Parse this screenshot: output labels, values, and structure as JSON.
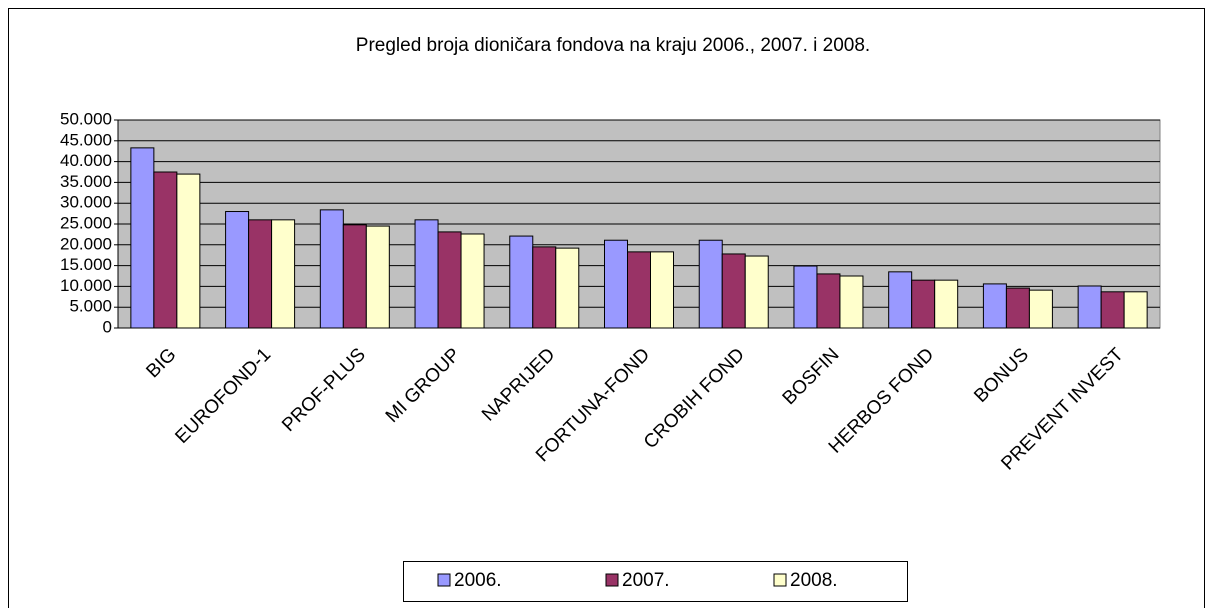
{
  "chart_data": {
    "type": "bar",
    "title": "Pregled broja dioničara fondova na kraju 2006., 2007. i 2008.",
    "categories": [
      "BIG",
      "EUROFOND-1",
      "PROF-PLUS",
      "MI GROUP",
      "NAPRIJED",
      "FORTUNA-FOND",
      "CROBIH FOND",
      "BOSFIN",
      "HERBOS FOND",
      "BONUS",
      "PREVENT INVEST"
    ],
    "series": [
      {
        "name": "2006.",
        "color": "#9999ff",
        "values": [
          43300,
          28000,
          28400,
          26000,
          22100,
          21100,
          21100,
          14900,
          13500,
          10600,
          10100
        ]
      },
      {
        "name": "2007.",
        "color": "#993366",
        "values": [
          37500,
          26000,
          24800,
          23100,
          19500,
          18300,
          17800,
          13000,
          11500,
          9600,
          8700
        ]
      },
      {
        "name": "2008.",
        "color": "#ffffcc",
        "values": [
          37000,
          26000,
          24500,
          22600,
          19200,
          18300,
          17300,
          12500,
          11500,
          9100,
          8700
        ]
      }
    ],
    "ylim": [
      0,
      50000
    ],
    "yticks": [
      0,
      {
        "value": 5000,
        "label": "5.000"
      },
      {
        "value": 10000,
        "label": "10.000"
      },
      {
        "value": 15000,
        "label": "15.000"
      },
      {
        "value": 20000,
        "label": "20.000"
      },
      {
        "value": 25000,
        "label": "25.000"
      },
      {
        "value": 30000,
        "label": "30.000"
      },
      {
        "value": 35000,
        "label": "35.000"
      },
      {
        "value": 40000,
        "label": "40.000"
      },
      {
        "value": 45000,
        "label": "45.000"
      },
      {
        "value": 50000,
        "label": "50.000"
      }
    ],
    "grid": true,
    "legend": "bottom"
  }
}
